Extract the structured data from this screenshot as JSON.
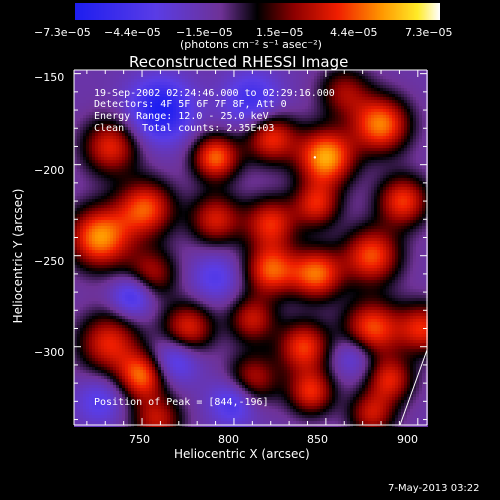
{
  "chart_data": {
    "type": "heatmap",
    "title": "Reconstructed RHESSI Image",
    "xlabel": "Heliocentric X (arcsec)",
    "ylabel": "Heliocentric Y (arcsec)",
    "xlim": [
      713,
      905
    ],
    "ylim": [
      -343,
      -148
    ],
    "x_ticks": [
      750,
      800,
      850,
      900
    ],
    "y_ticks": [
      -150,
      -200,
      -250,
      -300
    ],
    "x_tick_labels": [
      "750",
      "800",
      "850",
      "900"
    ],
    "y_tick_labels": [
      "−150",
      "−200",
      "−250",
      "−300"
    ],
    "colorbar": {
      "ticks": [
        "−7.3e−05",
        "−4.4e−05",
        "−1.5e−05",
        "1.5e−05",
        "4.4e−05",
        "7.3e−05"
      ],
      "range": [
        -7.3e-05,
        7.3e-05
      ],
      "unit_label": "(photons cm⁻² s⁻¹ asec⁻²)"
    },
    "annotations": {
      "time": "19-Sep-2002 02:24:46.000 to 02:29:16.000",
      "detectors": "Detectors: 4F 5F 6F 7F 8F, Att 0",
      "energy": "Energy Range: 12.0 - 25.0 keV",
      "method": "Clean",
      "counts": "Total counts: 2.35E+03",
      "peak": "Position of Peak = [844,-196]"
    },
    "blobs": [
      {
        "x": 727,
        "y": -240,
        "v": 0.95,
        "s": 12
      },
      {
        "x": 752,
        "y": -224,
        "v": 0.8,
        "s": 11
      },
      {
        "x": 732,
        "y": -298,
        "v": 0.7,
        "s": 12
      },
      {
        "x": 755,
        "y": -260,
        "v": 0.55,
        "s": 10
      },
      {
        "x": 790,
        "y": -196,
        "v": 0.85,
        "s": 9
      },
      {
        "x": 820,
        "y": -185,
        "v": 0.75,
        "s": 10
      },
      {
        "x": 790,
        "y": -230,
        "v": 0.65,
        "s": 10
      },
      {
        "x": 850,
        "y": -196,
        "v": 1.0,
        "s": 11
      },
      {
        "x": 880,
        "y": -178,
        "v": 0.9,
        "s": 11
      },
      {
        "x": 820,
        "y": -232,
        "v": 0.7,
        "s": 10
      },
      {
        "x": 845,
        "y": -222,
        "v": 0.65,
        "s": 9
      },
      {
        "x": 820,
        "y": -258,
        "v": 0.8,
        "s": 10
      },
      {
        "x": 845,
        "y": -260,
        "v": 0.85,
        "s": 10
      },
      {
        "x": 875,
        "y": -250,
        "v": 0.8,
        "s": 11
      },
      {
        "x": 892,
        "y": -220,
        "v": 0.75,
        "s": 10
      },
      {
        "x": 775,
        "y": -290,
        "v": 0.7,
        "s": 10
      },
      {
        "x": 810,
        "y": -285,
        "v": 0.6,
        "s": 9
      },
      {
        "x": 838,
        "y": -300,
        "v": 0.75,
        "s": 10
      },
      {
        "x": 875,
        "y": -290,
        "v": 0.8,
        "s": 11
      },
      {
        "x": 903,
        "y": -290,
        "v": 0.7,
        "s": 10
      },
      {
        "x": 885,
        "y": -318,
        "v": 0.65,
        "s": 9
      },
      {
        "x": 750,
        "y": -316,
        "v": 0.8,
        "s": 9
      },
      {
        "x": 758,
        "y": -340,
        "v": 0.6,
        "s": 10
      },
      {
        "x": 810,
        "y": -318,
        "v": 0.6,
        "s": 10
      },
      {
        "x": 842,
        "y": -325,
        "v": 0.7,
        "s": 9
      },
      {
        "x": 875,
        "y": -337,
        "v": 0.6,
        "s": 9
      },
      {
        "x": 733,
        "y": -190,
        "v": 0.7,
        "s": 11
      },
      {
        "x": 760,
        "y": -170,
        "v": -0.75,
        "s": 12
      },
      {
        "x": 810,
        "y": -165,
        "v": -0.5,
        "s": 11
      },
      {
        "x": 790,
        "y": -262,
        "v": -0.35,
        "s": 9
      },
      {
        "x": 745,
        "y": -272,
        "v": -0.55,
        "s": 8
      },
      {
        "x": 768,
        "y": -307,
        "v": -0.45,
        "s": 9
      },
      {
        "x": 800,
        "y": -330,
        "v": -0.5,
        "s": 9
      },
      {
        "x": 865,
        "y": -305,
        "v": -0.35,
        "s": 8
      },
      {
        "x": 727,
        "y": -330,
        "v": -0.35,
        "s": 9
      },
      {
        "x": 860,
        "y": -160,
        "v": 0.5,
        "s": 10
      }
    ]
  },
  "footer": {
    "date": "7-May-2013 03:22"
  }
}
